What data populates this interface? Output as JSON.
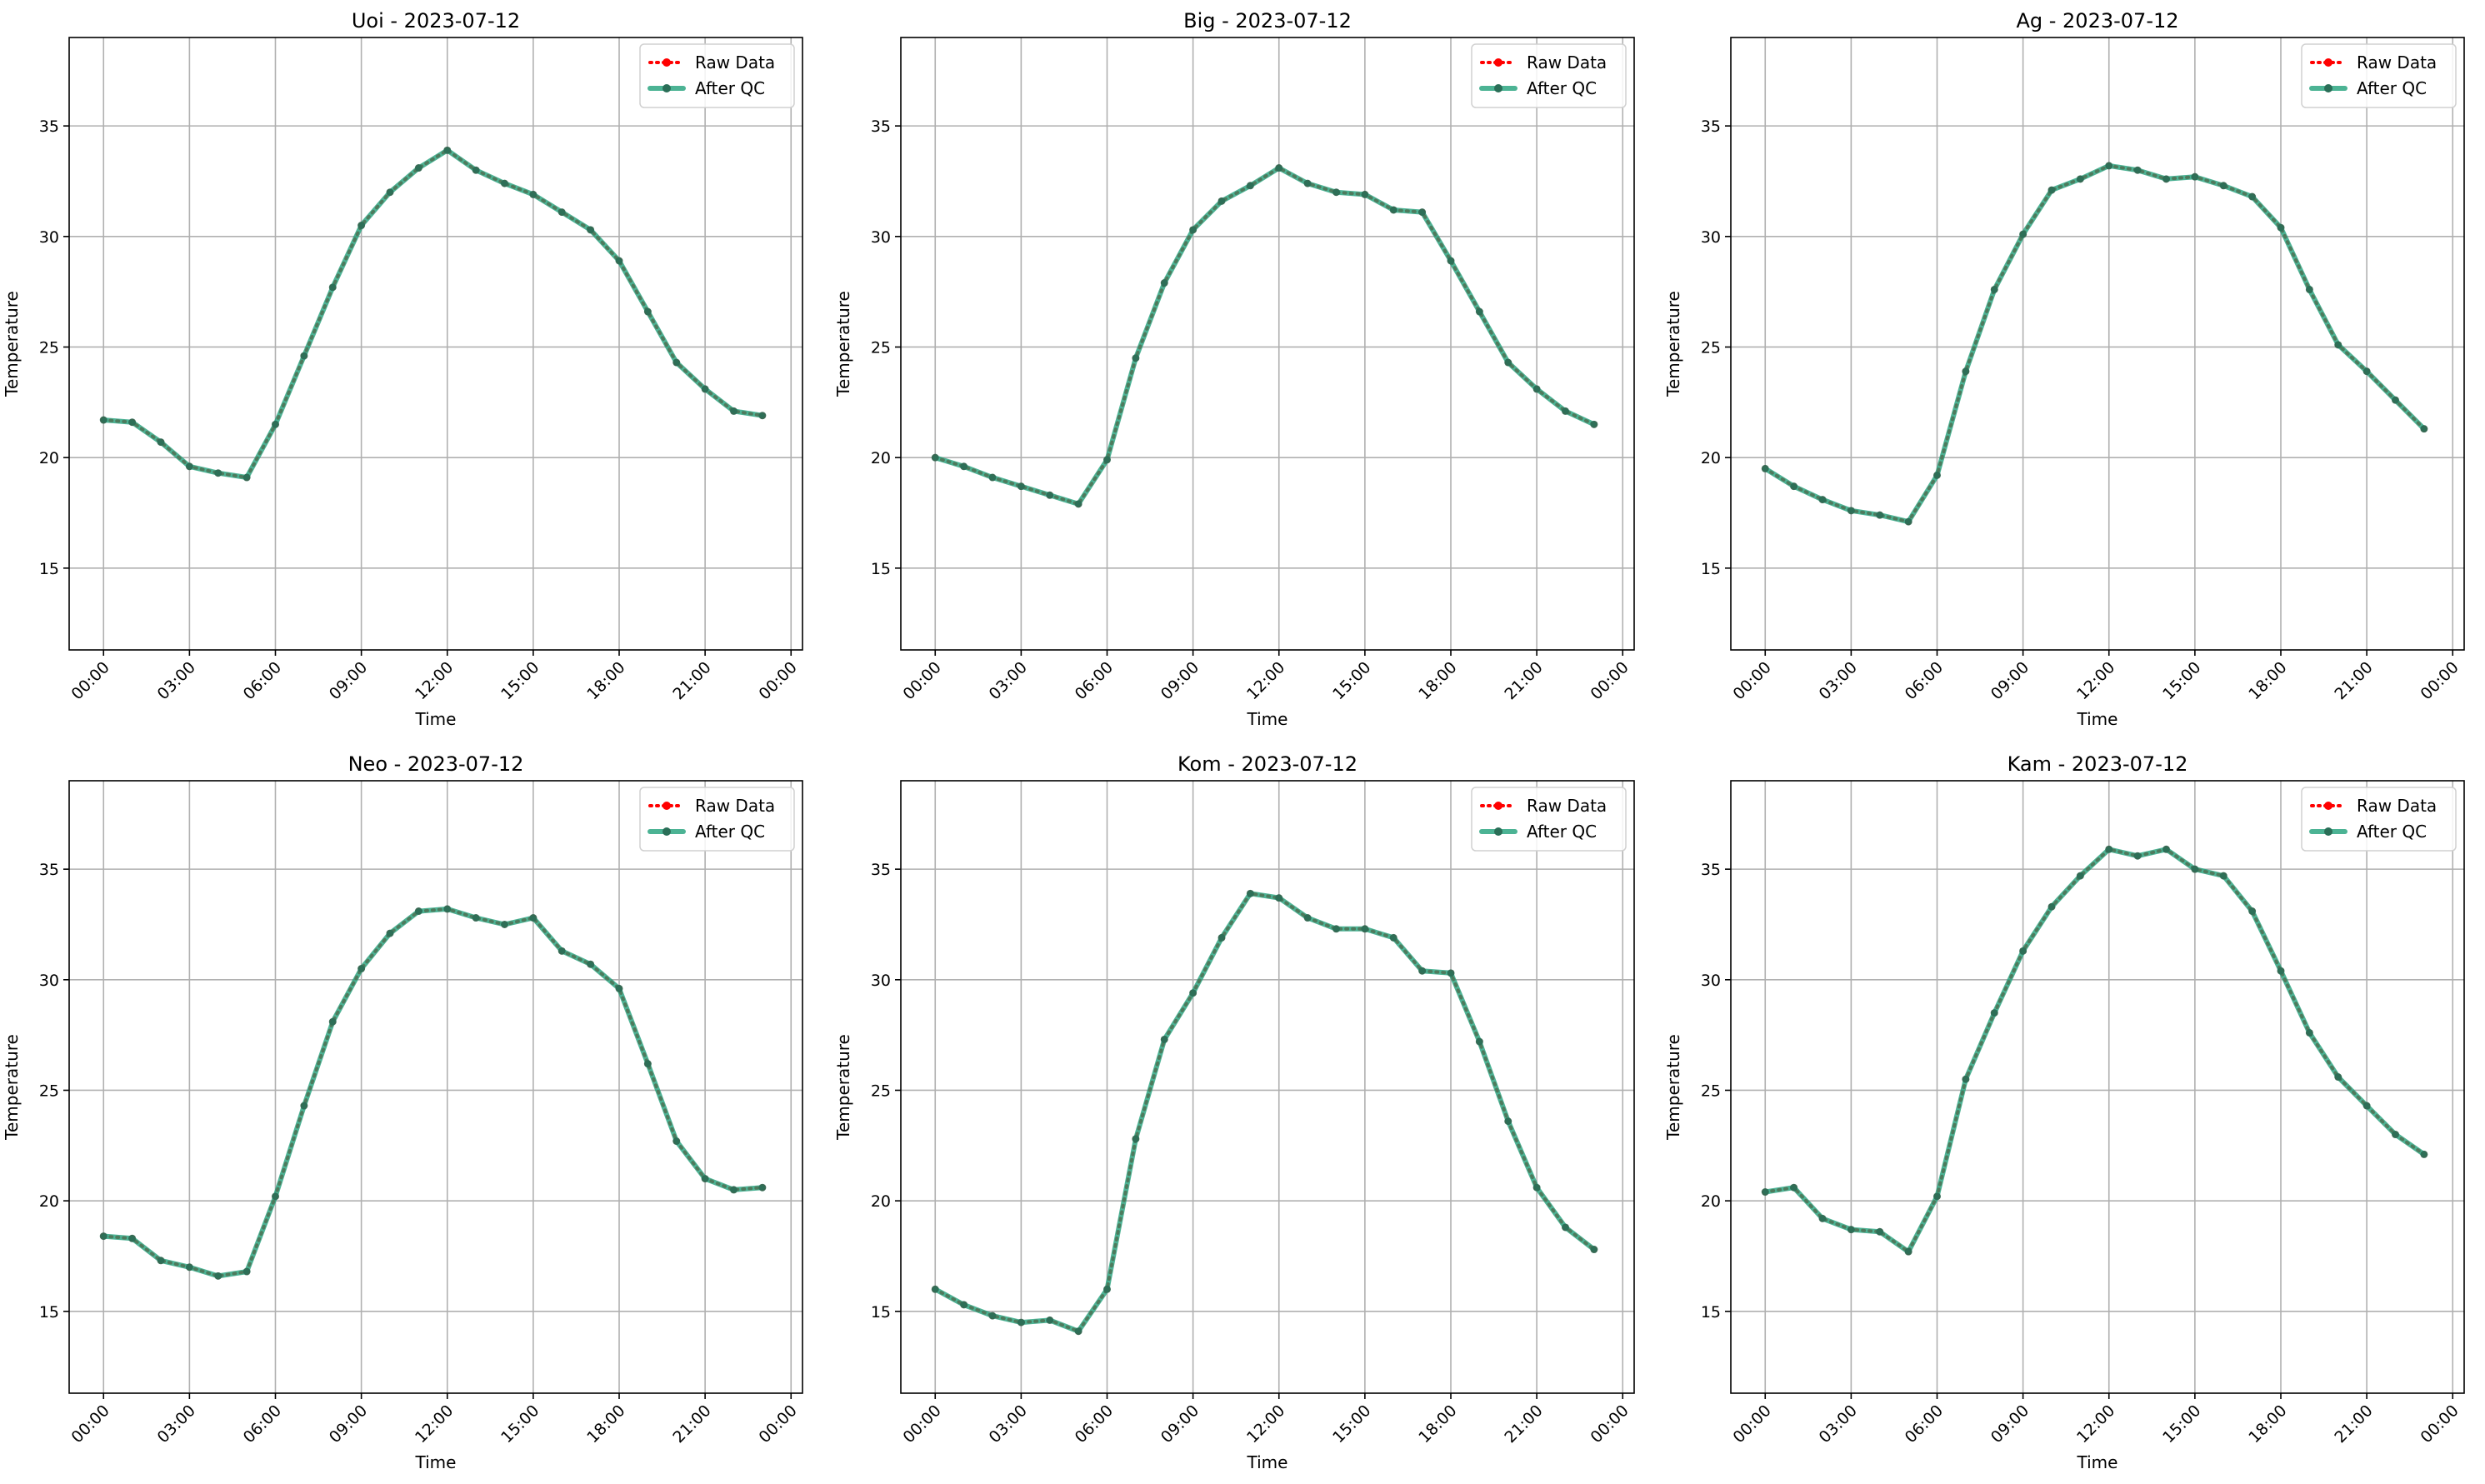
{
  "chart_data": [
    {
      "type": "line",
      "title": "Uoi - 2023-07-12",
      "xlabel": "Time",
      "ylabel": "Temperature",
      "xticks": [
        "00:00",
        "03:00",
        "06:00",
        "09:00",
        "12:00",
        "15:00",
        "18:00",
        "21:00",
        "00:00"
      ],
      "yticks": [
        "15",
        "20",
        "25",
        "30",
        "35"
      ],
      "xlim": [
        -1.2,
        24.4
      ],
      "ylim": [
        11.3,
        39
      ],
      "grid": true,
      "legend": "top-right",
      "x": [
        0,
        1,
        2,
        3,
        4,
        5,
        6,
        7,
        8,
        9,
        10,
        11,
        12,
        13,
        14,
        15,
        16,
        17,
        18,
        19,
        20,
        21,
        22,
        23
      ],
      "series": [
        {
          "name": "Raw Data",
          "color": "#ff0000",
          "values": [
            21.7,
            21.6,
            20.7,
            19.6,
            19.3,
            19.1,
            21.5,
            24.6,
            27.7,
            30.5,
            32.0,
            33.1,
            33.9,
            33.0,
            32.4,
            31.9,
            31.1,
            30.3,
            28.9,
            26.6,
            24.3,
            23.1,
            22.1,
            21.9
          ]
        },
        {
          "name": "After QC",
          "color": "#1b9e77",
          "values": [
            21.7,
            21.6,
            20.7,
            19.6,
            19.3,
            19.1,
            21.5,
            24.6,
            27.7,
            30.5,
            32.0,
            33.1,
            33.9,
            33.0,
            32.4,
            31.9,
            31.1,
            30.3,
            28.9,
            26.6,
            24.3,
            23.1,
            22.1,
            21.9
          ]
        }
      ]
    },
    {
      "type": "line",
      "title": "Big - 2023-07-12",
      "xlabel": "Time",
      "ylabel": "Temperature",
      "xticks": [
        "00:00",
        "03:00",
        "06:00",
        "09:00",
        "12:00",
        "15:00",
        "18:00",
        "21:00",
        "00:00"
      ],
      "yticks": [
        "15",
        "20",
        "25",
        "30",
        "35"
      ],
      "xlim": [
        -1.2,
        24.4
      ],
      "ylim": [
        11.3,
        39
      ],
      "grid": true,
      "legend": "top-right",
      "x": [
        0,
        1,
        2,
        3,
        4,
        5,
        6,
        7,
        8,
        9,
        10,
        11,
        12,
        13,
        14,
        15,
        16,
        17,
        18,
        19,
        20,
        21,
        22,
        23
      ],
      "series": [
        {
          "name": "Raw Data",
          "color": "#ff0000",
          "values": [
            20.0,
            19.6,
            19.1,
            18.7,
            18.3,
            17.9,
            19.9,
            24.5,
            27.9,
            30.3,
            31.6,
            32.3,
            33.1,
            32.4,
            32.0,
            31.9,
            31.2,
            31.1,
            28.9,
            26.6,
            24.3,
            23.1,
            22.1,
            21.5
          ]
        },
        {
          "name": "After QC",
          "color": "#1b9e77",
          "values": [
            20.0,
            19.6,
            19.1,
            18.7,
            18.3,
            17.9,
            19.9,
            24.5,
            27.9,
            30.3,
            31.6,
            32.3,
            33.1,
            32.4,
            32.0,
            31.9,
            31.2,
            31.1,
            28.9,
            26.6,
            24.3,
            23.1,
            22.1,
            21.5
          ]
        }
      ]
    },
    {
      "type": "line",
      "title": "Ag - 2023-07-12",
      "xlabel": "Time",
      "ylabel": "Temperature",
      "xticks": [
        "00:00",
        "03:00",
        "06:00",
        "09:00",
        "12:00",
        "15:00",
        "18:00",
        "21:00",
        "00:00"
      ],
      "yticks": [
        "15",
        "20",
        "25",
        "30",
        "35"
      ],
      "xlim": [
        -1.2,
        24.4
      ],
      "ylim": [
        11.3,
        39
      ],
      "grid": true,
      "legend": "top-right",
      "x": [
        0,
        1,
        2,
        3,
        4,
        5,
        6,
        7,
        8,
        9,
        10,
        11,
        12,
        13,
        14,
        15,
        16,
        17,
        18,
        19,
        20,
        21,
        22,
        23
      ],
      "series": [
        {
          "name": "Raw Data",
          "color": "#ff0000",
          "values": [
            19.5,
            18.7,
            18.1,
            17.6,
            17.4,
            17.1,
            19.2,
            23.9,
            27.6,
            30.1,
            32.1,
            32.6,
            33.2,
            33.0,
            32.6,
            32.7,
            32.3,
            31.8,
            30.4,
            27.6,
            25.1,
            23.9,
            22.6,
            21.3
          ]
        },
        {
          "name": "After QC",
          "color": "#1b9e77",
          "values": [
            19.5,
            18.7,
            18.1,
            17.6,
            17.4,
            17.1,
            19.2,
            23.9,
            27.6,
            30.1,
            32.1,
            32.6,
            33.2,
            33.0,
            32.6,
            32.7,
            32.3,
            31.8,
            30.4,
            27.6,
            25.1,
            23.9,
            22.6,
            21.3
          ]
        }
      ]
    },
    {
      "type": "line",
      "title": "Neo - 2023-07-12",
      "xlabel": "Time",
      "ylabel": "Temperature",
      "xticks": [
        "00:00",
        "03:00",
        "06:00",
        "09:00",
        "12:00",
        "15:00",
        "18:00",
        "21:00",
        "00:00"
      ],
      "yticks": [
        "15",
        "20",
        "25",
        "30",
        "35"
      ],
      "xlim": [
        -1.2,
        24.4
      ],
      "ylim": [
        11.3,
        39
      ],
      "grid": true,
      "legend": "top-right",
      "x": [
        0,
        1,
        2,
        3,
        4,
        5,
        6,
        7,
        8,
        9,
        10,
        11,
        12,
        13,
        14,
        15,
        16,
        17,
        18,
        19,
        20,
        21,
        22,
        23
      ],
      "series": [
        {
          "name": "Raw Data",
          "color": "#ff0000",
          "values": [
            18.4,
            18.3,
            17.3,
            17.0,
            16.6,
            16.8,
            20.2,
            24.3,
            28.1,
            30.5,
            32.1,
            33.1,
            33.2,
            32.8,
            32.5,
            32.8,
            31.3,
            30.7,
            29.6,
            26.2,
            22.7,
            21.0,
            20.5,
            20.6
          ]
        },
        {
          "name": "After QC",
          "color": "#1b9e77",
          "values": [
            18.4,
            18.3,
            17.3,
            17.0,
            16.6,
            16.8,
            20.2,
            24.3,
            28.1,
            30.5,
            32.1,
            33.1,
            33.2,
            32.8,
            32.5,
            32.8,
            31.3,
            30.7,
            29.6,
            26.2,
            22.7,
            21.0,
            20.5,
            20.6
          ]
        }
      ]
    },
    {
      "type": "line",
      "title": "Kom - 2023-07-12",
      "xlabel": "Time",
      "ylabel": "Temperature",
      "xticks": [
        "00:00",
        "03:00",
        "06:00",
        "09:00",
        "12:00",
        "15:00",
        "18:00",
        "21:00",
        "00:00"
      ],
      "yticks": [
        "15",
        "20",
        "25",
        "30",
        "35"
      ],
      "xlim": [
        -1.2,
        24.4
      ],
      "ylim": [
        11.3,
        39
      ],
      "grid": true,
      "legend": "top-right",
      "x": [
        0,
        1,
        2,
        3,
        4,
        5,
        6,
        7,
        8,
        9,
        10,
        11,
        12,
        13,
        14,
        15,
        16,
        17,
        18,
        19,
        20,
        21,
        22,
        23
      ],
      "series": [
        {
          "name": "Raw Data",
          "color": "#ff0000",
          "values": [
            16.0,
            15.3,
            14.8,
            14.5,
            14.6,
            14.1,
            16.0,
            22.8,
            27.3,
            29.4,
            31.9,
            33.9,
            33.7,
            32.8,
            32.3,
            32.3,
            31.9,
            30.4,
            30.3,
            27.2,
            23.6,
            20.6,
            18.8,
            17.8
          ]
        },
        {
          "name": "After QC",
          "color": "#1b9e77",
          "values": [
            16.0,
            15.3,
            14.8,
            14.5,
            14.6,
            14.1,
            16.0,
            22.8,
            27.3,
            29.4,
            31.9,
            33.9,
            33.7,
            32.8,
            32.3,
            32.3,
            31.9,
            30.4,
            30.3,
            27.2,
            23.6,
            20.6,
            18.8,
            17.8
          ]
        }
      ]
    },
    {
      "type": "line",
      "title": "Kam - 2023-07-12",
      "xlabel": "Time",
      "ylabel": "Temperature",
      "xticks": [
        "00:00",
        "03:00",
        "06:00",
        "09:00",
        "12:00",
        "15:00",
        "18:00",
        "21:00",
        "00:00"
      ],
      "yticks": [
        "15",
        "20",
        "25",
        "30",
        "35"
      ],
      "xlim": [
        -1.2,
        24.4
      ],
      "ylim": [
        11.3,
        39
      ],
      "grid": true,
      "legend": "top-right",
      "x": [
        0,
        1,
        2,
        3,
        4,
        5,
        6,
        7,
        8,
        9,
        10,
        11,
        12,
        13,
        14,
        15,
        16,
        17,
        18,
        19,
        20,
        21,
        22,
        23
      ],
      "series": [
        {
          "name": "Raw Data",
          "color": "#ff0000",
          "values": [
            20.4,
            20.6,
            19.2,
            18.7,
            18.6,
            17.7,
            20.2,
            25.5,
            28.5,
            31.3,
            33.3,
            34.7,
            35.9,
            35.6,
            35.9,
            35.0,
            34.7,
            33.1,
            30.4,
            27.6,
            25.6,
            24.3,
            23.0,
            22.1
          ]
        },
        {
          "name": "After QC",
          "color": "#1b9e77",
          "values": [
            20.4,
            20.6,
            19.2,
            18.7,
            18.6,
            17.7,
            20.2,
            25.5,
            28.5,
            31.3,
            33.3,
            34.7,
            35.9,
            35.6,
            35.9,
            35.0,
            34.7,
            33.1,
            30.4,
            27.6,
            25.6,
            24.3,
            23.0,
            22.1
          ]
        }
      ]
    }
  ]
}
